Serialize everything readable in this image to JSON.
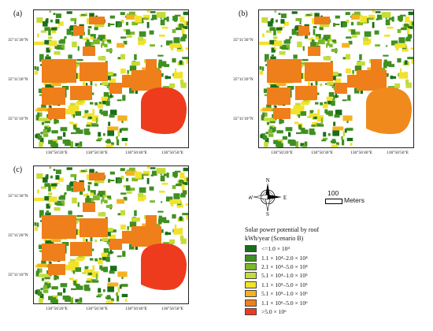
{
  "panels": [
    {
      "label": "(a)",
      "campus_color": "#ee3b1e"
    },
    {
      "label": "(b)",
      "campus_color": "#f08a1c"
    },
    {
      "label": "(c)",
      "campus_color": "#ee3b1e"
    }
  ],
  "lat_labels": [
    "35°11'30\"N",
    "35°11'20\"N",
    "35°11'10\"N"
  ],
  "lon_labels": [
    "136°56'20\"E",
    "136°56'30\"E",
    "136°56'40\"E",
    "136°56'50\"E"
  ],
  "compass": {
    "n": "N",
    "e": "E",
    "s": "S",
    "w": "W"
  },
  "scale": {
    "value": "100",
    "unit": "Meters"
  },
  "legend": {
    "title": "Solar power potential by roof",
    "subtitle": "kWh/year (Scenario B)",
    "items": [
      {
        "label": "<=1.0 × 10⁴",
        "color": "#1a6e1a"
      },
      {
        "label": "1.1 × 10⁴–2.0 × 10⁴",
        "color": "#3f8f21"
      },
      {
        "label": "2.1 × 10⁴–5.0 × 10⁴",
        "color": "#7cb82a"
      },
      {
        "label": "5.1 × 10⁴–1.0 × 10⁵",
        "color": "#c6dc3a"
      },
      {
        "label": "1.1 × 10⁵–5.0 × 10⁵",
        "color": "#f2e22a"
      },
      {
        "label": "5.1 × 10⁵–1.0 × 10⁶",
        "color": "#f5b21f"
      },
      {
        "label": "1.1 × 10⁶–5.0 × 10⁶",
        "color": "#ef7f1a"
      },
      {
        "label": ">5.0 × 10⁶",
        "color": "#ee3b1e"
      }
    ]
  }
}
